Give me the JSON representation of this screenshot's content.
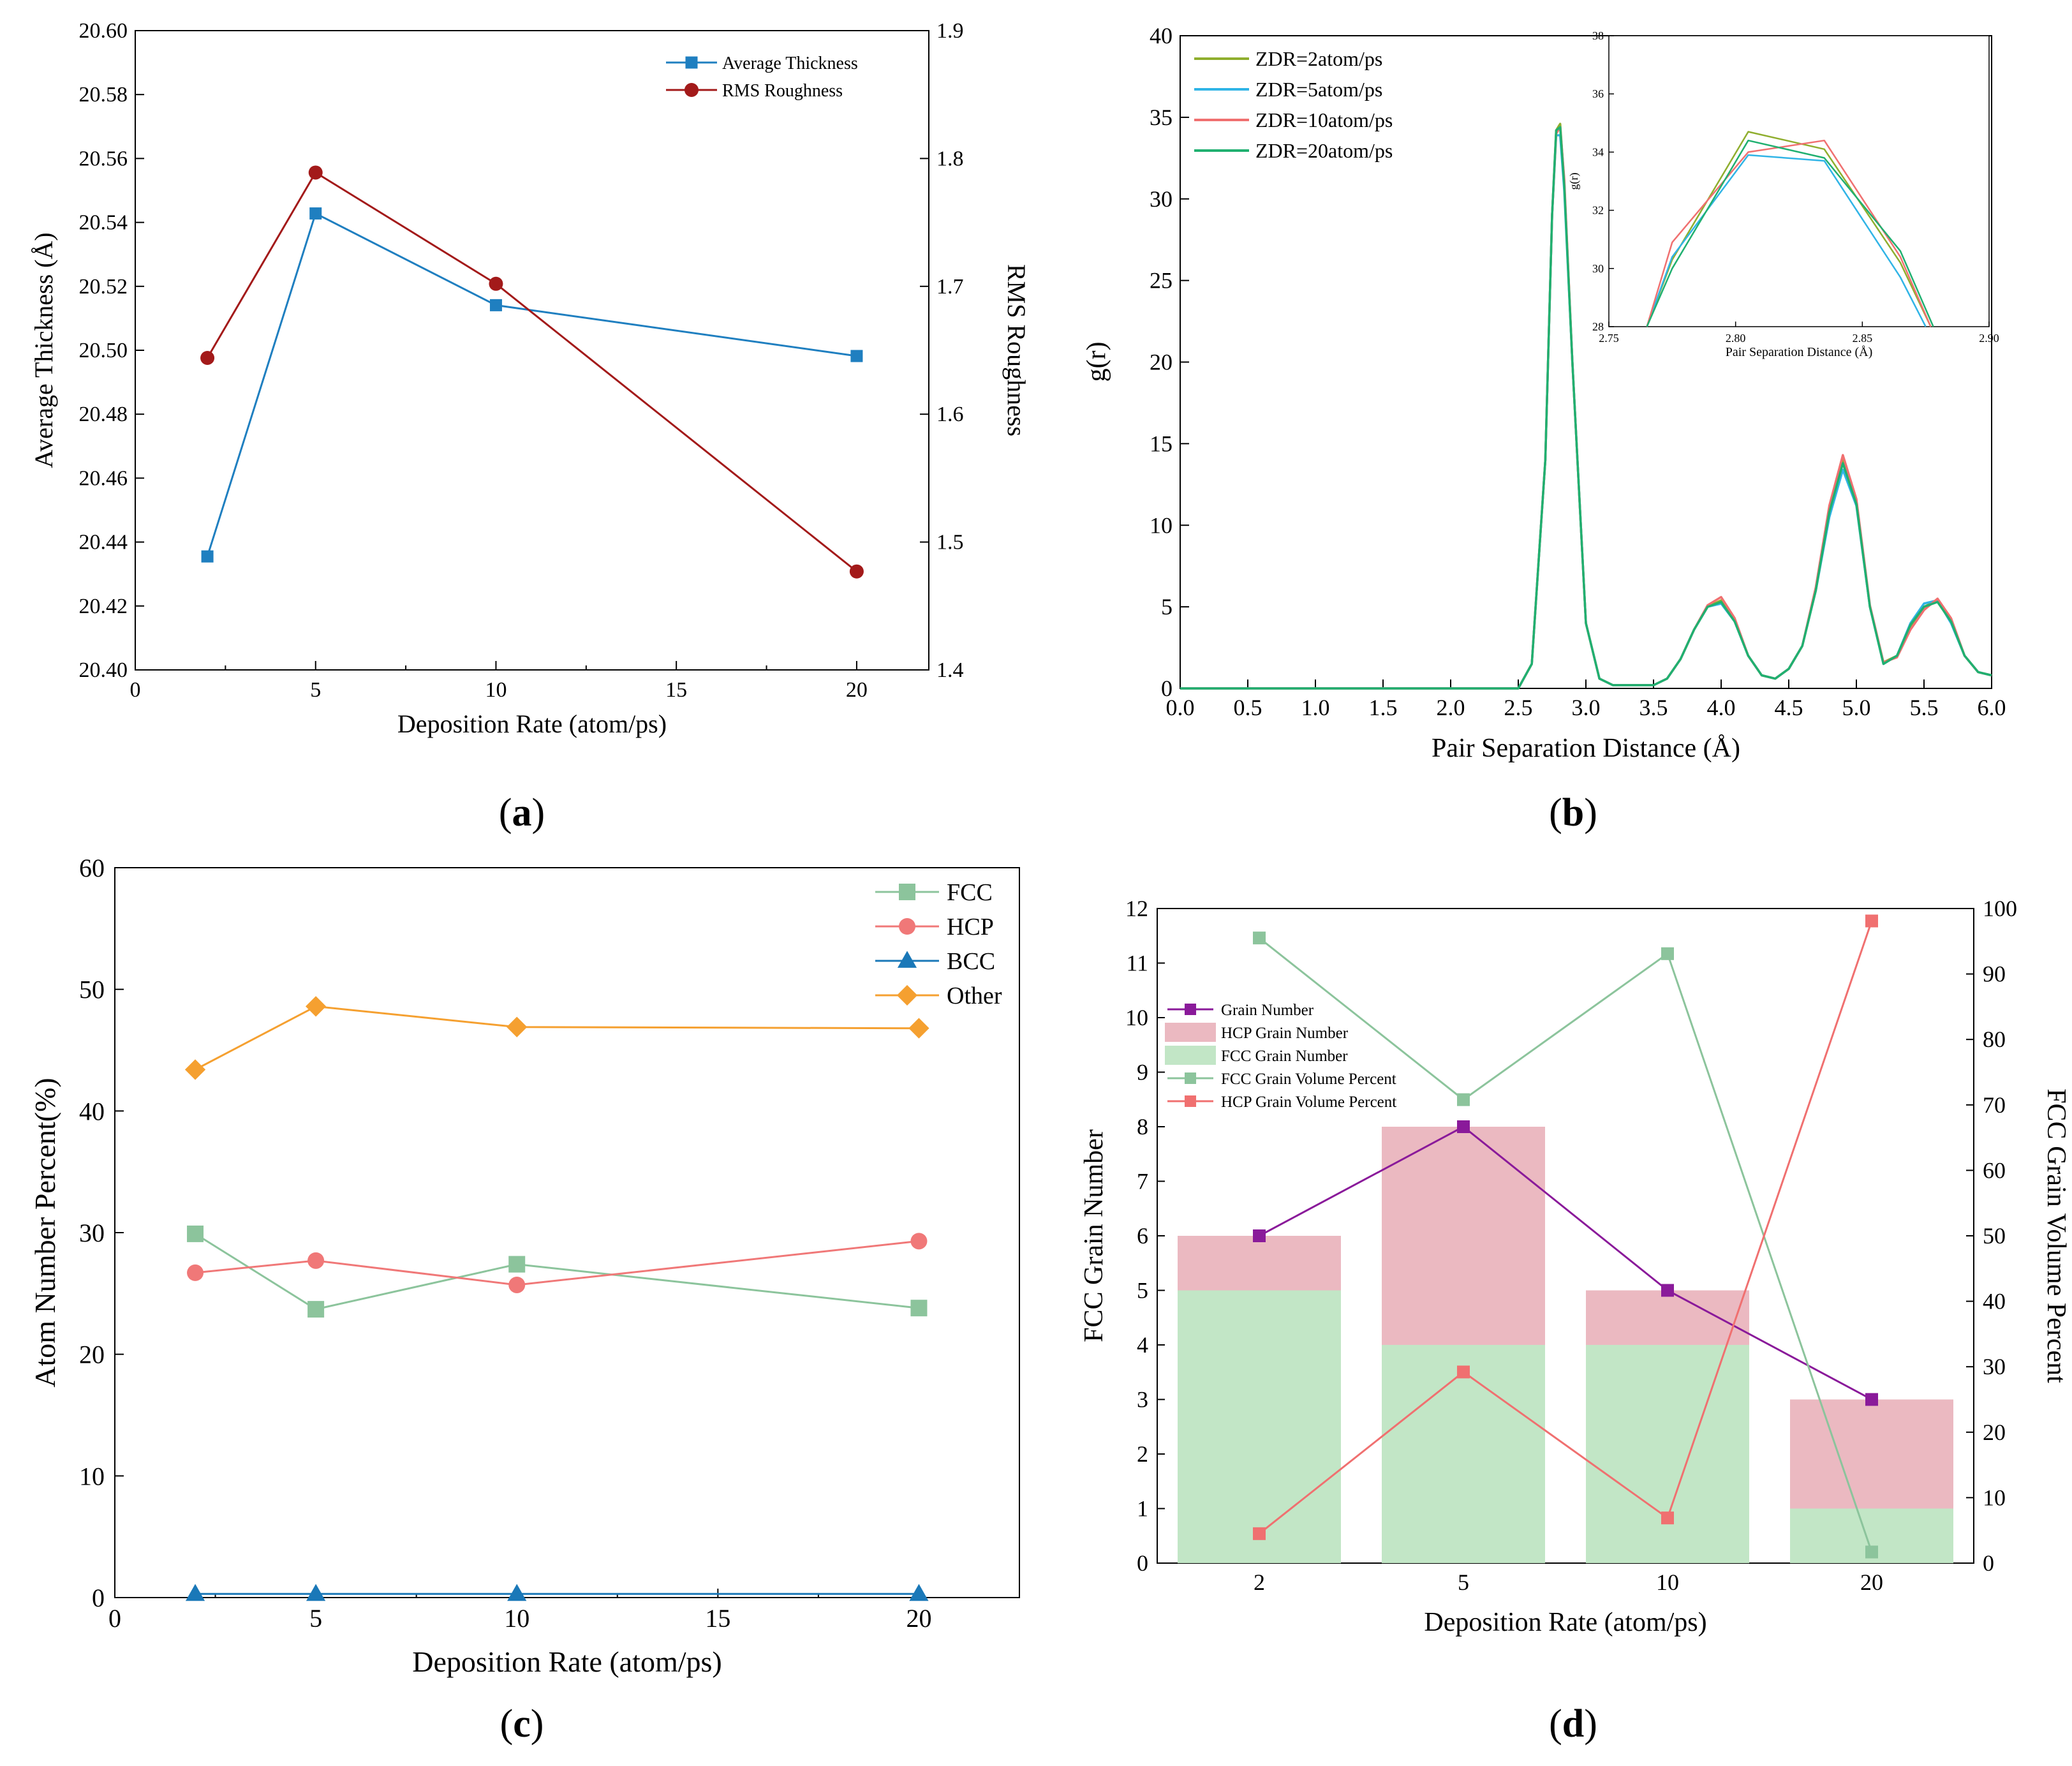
{
  "panels": [
    {
      "id": "a",
      "caption_letter": "a",
      "caption_open": "(",
      "caption_close": ")",
      "chart_data": {
        "type": "line",
        "title": "",
        "xlabel": "Deposition Rate (atom/ps)",
        "ylabel": "Average Thickness (Å)",
        "y2label": "RMS Roughness",
        "xlim": [
          0,
          22
        ],
        "ylim": [
          20.4,
          20.6
        ],
        "y2lim": [
          1.4,
          1.9
        ],
        "xticks": [
          "0",
          "5",
          "10",
          "15",
          "20"
        ],
        "xtick_values": [
          0,
          5,
          10,
          15,
          20
        ],
        "yticks": [
          "20.40",
          "20.42",
          "20.44",
          "20.46",
          "20.48",
          "20.50",
          "20.52",
          "20.54",
          "20.56",
          "20.58",
          "20.60"
        ],
        "y2ticks": [
          "1.4",
          "1.5",
          "1.6",
          "1.7",
          "1.8",
          "1.9"
        ],
        "legend_position": "top-right",
        "series": [
          {
            "name": "Average Thickness",
            "axis": "left",
            "marker": "square",
            "color": "#1f7fc0",
            "x": [
              2,
              5,
              10,
              20
            ],
            "y": [
              20.4355,
              20.5428,
              20.5141,
              20.4982
            ]
          },
          {
            "name": "RMS Roughness",
            "axis": "right",
            "marker": "circle",
            "color": "#a31a1a",
            "x": [
              2,
              5,
              10,
              20
            ],
            "y": [
              1.644,
              1.789,
              1.702,
              1.477
            ]
          }
        ]
      }
    },
    {
      "id": "b",
      "caption_letter": "b",
      "caption_open": "(",
      "caption_close": ")",
      "chart_data": {
        "type": "line",
        "title": "",
        "xlabel": "Pair Separation Distance (Å)",
        "ylabel": "g(r)",
        "xlim": [
          0,
          6
        ],
        "ylim": [
          0,
          40
        ],
        "xticks": [
          "0.0",
          "0.5",
          "1.0",
          "1.5",
          "2.0",
          "2.5",
          "3.0",
          "3.5",
          "4.0",
          "4.5",
          "5.0",
          "5.5",
          "6.0"
        ],
        "yticks": [
          "0",
          "5",
          "10",
          "15",
          "20",
          "25",
          "30",
          "35",
          "40"
        ],
        "legend_position": "top-left",
        "series": [
          {
            "name": "ZDR=2atom/ps",
            "color": "#8fae2e",
            "x": [
              0,
              2.5,
              2.6,
              2.7,
              2.75,
              2.78,
              2.81,
              2.84,
              2.9,
              3.0,
              3.1,
              3.2,
              3.5,
              3.6,
              3.7,
              3.8,
              3.9,
              4.0,
              4.1,
              4.2,
              4.3,
              4.4,
              4.5,
              4.6,
              4.7,
              4.8,
              4.9,
              5.0,
              5.1,
              5.2,
              5.3,
              5.4,
              5.5,
              5.6,
              5.7,
              5.8,
              5.9,
              6.0
            ],
            "y": [
              0,
              0,
              1.5,
              14,
              29,
              34.2,
              34.6,
              31,
              20,
              4,
              0.6,
              0.2,
              0.2,
              0.6,
              1.8,
              3.6,
              5.0,
              5.4,
              4.2,
              2.0,
              0.8,
              0.6,
              1.2,
              2.6,
              6.0,
              11.0,
              14.0,
              11.5,
              5.0,
              1.6,
              2.0,
              3.8,
              5.0,
              5.4,
              4.2,
              2.0,
              1.0,
              0.8
            ]
          },
          {
            "name": "ZDR=5atom/ps",
            "color": "#30b4e6",
            "x": [
              0,
              2.5,
              2.6,
              2.7,
              2.75,
              2.78,
              2.81,
              2.84,
              2.9,
              3.0,
              3.1,
              3.2,
              3.5,
              3.6,
              3.7,
              3.8,
              3.9,
              4.0,
              4.1,
              4.2,
              4.3,
              4.4,
              4.5,
              4.6,
              4.7,
              4.8,
              4.9,
              5.0,
              5.1,
              5.2,
              5.3,
              5.4,
              5.5,
              5.6,
              5.7,
              5.8,
              5.9,
              6.0
            ],
            "y": [
              0,
              0,
              1.5,
              14,
              29,
              33.9,
              33.9,
              30.5,
              20,
              4,
              0.6,
              0.2,
              0.2,
              0.6,
              1.8,
              3.6,
              5.0,
              5.2,
              4.1,
              2.0,
              0.8,
              0.6,
              1.2,
              2.6,
              6.0,
              10.5,
              13.4,
              11.2,
              5.0,
              1.5,
              2.0,
              4.0,
              5.2,
              5.4,
              4.0,
              2.0,
              1.0,
              0.8
            ]
          },
          {
            "name": "ZDR=10atom/ps",
            "color": "#f07070",
            "x": [
              0,
              2.5,
              2.6,
              2.7,
              2.75,
              2.78,
              2.81,
              2.84,
              2.9,
              3.0,
              3.1,
              3.2,
              3.5,
              3.6,
              3.7,
              3.8,
              3.9,
              4.0,
              4.1,
              4.2,
              4.3,
              4.4,
              4.5,
              4.6,
              4.7,
              4.8,
              4.9,
              5.0,
              5.1,
              5.2,
              5.3,
              5.4,
              5.5,
              5.6,
              5.7,
              5.8,
              5.9,
              6.0
            ],
            "y": [
              0,
              0,
              1.5,
              14,
              29,
              34.0,
              34.4,
              31.2,
              20,
              4,
              0.6,
              0.2,
              0.2,
              0.6,
              1.8,
              3.6,
              5.1,
              5.6,
              4.3,
              2.0,
              0.8,
              0.6,
              1.2,
              2.6,
              6.2,
              11.2,
              14.3,
              11.6,
              5.1,
              1.6,
              1.9,
              3.6,
              4.8,
              5.5,
              4.3,
              2.0,
              1.0,
              0.8
            ]
          },
          {
            "name": "ZDR=20atom/ps",
            "color": "#20b070",
            "x": [
              0,
              2.5,
              2.6,
              2.7,
              2.75,
              2.78,
              2.81,
              2.84,
              2.9,
              3.0,
              3.1,
              3.2,
              3.5,
              3.6,
              3.7,
              3.8,
              3.9,
              4.0,
              4.1,
              4.2,
              4.3,
              4.4,
              4.5,
              4.6,
              4.7,
              4.8,
              4.9,
              5.0,
              5.1,
              5.2,
              5.3,
              5.4,
              5.5,
              5.6,
              5.7,
              5.8,
              5.9,
              6.0
            ],
            "y": [
              0,
              0,
              1.5,
              14,
              29,
              34.2,
              34.4,
              30.8,
              20,
              4,
              0.6,
              0.2,
              0.2,
              0.6,
              1.8,
              3.6,
              5.0,
              5.3,
              4.1,
              2.0,
              0.8,
              0.6,
              1.2,
              2.6,
              6.0,
              10.8,
              13.8,
              11.3,
              5.0,
              1.5,
              2.0,
              3.9,
              5.0,
              5.3,
              4.1,
              2.0,
              1.0,
              0.8
            ]
          }
        ],
        "inset": {
          "xlabel": "Pair Separation Distance (Å)",
          "ylabel": "g(r)",
          "xlim": [
            2.75,
            2.9
          ],
          "ylim": [
            28,
            38
          ],
          "xticks": [
            "2.75",
            "2.80",
            "2.85",
            "2.90"
          ],
          "xtick_values": [
            2.75,
            2.8,
            2.85,
            2.9
          ],
          "yticks": [
            "28",
            "30",
            "32",
            "34",
            "36",
            "38"
          ],
          "ytick_values": [
            28,
            30,
            32,
            34,
            36,
            38
          ],
          "series": [
            {
              "color": "#8fae2e",
              "x": [
                2.765,
                2.775,
                2.805,
                2.835,
                2.865,
                2.877
              ],
              "y": [
                28,
                30.3,
                34.7,
                34.1,
                30.2,
                28
              ]
            },
            {
              "color": "#30b4e6",
              "x": [
                2.765,
                2.775,
                2.805,
                2.835,
                2.865,
                2.875
              ],
              "y": [
                28,
                30.4,
                33.9,
                33.7,
                29.7,
                28
              ]
            },
            {
              "color": "#f07070",
              "x": [
                2.765,
                2.775,
                2.805,
                2.835,
                2.865,
                2.877
              ],
              "y": [
                28,
                30.9,
                34.0,
                34.4,
                30.4,
                28
              ]
            },
            {
              "color": "#20b070",
              "x": [
                2.765,
                2.775,
                2.805,
                2.835,
                2.865,
                2.878
              ],
              "y": [
                28,
                30.0,
                34.4,
                33.8,
                30.6,
                28
              ]
            }
          ]
        }
      }
    },
    {
      "id": "c",
      "caption_letter": "c",
      "caption_open": "(",
      "caption_close": ")",
      "chart_data": {
        "type": "line",
        "title": "",
        "xlabel": "Deposition Rate (atom/ps)",
        "ylabel": "Atom Number Percent(%)",
        "xlim": [
          0,
          22.5
        ],
        "ylim": [
          0,
          60
        ],
        "xticks": [
          "0",
          "5",
          "10",
          "15",
          "20"
        ],
        "xtick_values": [
          0,
          5,
          10,
          15,
          20
        ],
        "yticks": [
          "0",
          "10",
          "20",
          "30",
          "40",
          "50",
          "60"
        ],
        "legend_position": "top-right",
        "series": [
          {
            "name": "FCC",
            "marker": "square",
            "color": "#8cc49c",
            "x": [
              2,
              5,
              10,
              20
            ],
            "y": [
              29.9,
              23.7,
              27.4,
              23.8
            ]
          },
          {
            "name": "HCP",
            "marker": "circle",
            "color": "#f07878",
            "x": [
              2,
              5,
              10,
              20
            ],
            "y": [
              26.7,
              27.7,
              25.7,
              29.3
            ]
          },
          {
            "name": "BCC",
            "marker": "triangle",
            "color": "#1a78b8",
            "x": [
              2,
              5,
              10,
              20
            ],
            "y": [
              0.3,
              0.3,
              0.3,
              0.3
            ]
          },
          {
            "name": "Other",
            "marker": "diamond",
            "color": "#f5a030",
            "x": [
              2,
              5,
              10,
              20
            ],
            "y": [
              43.4,
              48.6,
              46.9,
              46.8
            ]
          }
        ]
      }
    },
    {
      "id": "d",
      "caption_letter": "d",
      "caption_open": "(",
      "caption_close": ")",
      "chart_data": {
        "type": "bar",
        "title": "",
        "xlabel": "Deposition Rate (atom/ps)",
        "ylabel": "FCC Grain Number",
        "y2label": "FCC Grain Volume Percent",
        "categories": [
          "2",
          "5",
          "10",
          "20"
        ],
        "ylim": [
          0,
          12
        ],
        "y2lim": [
          0,
          100
        ],
        "yticks": [
          "0",
          "1",
          "2",
          "3",
          "4",
          "5",
          "6",
          "7",
          "8",
          "9",
          "10",
          "11",
          "12"
        ],
        "y2ticks": [
          "0",
          "10",
          "20",
          "30",
          "40",
          "50",
          "60",
          "70",
          "80",
          "90",
          "100"
        ],
        "legend_position": "top-left",
        "series": [
          {
            "name": "Grain Number",
            "kind": "line",
            "axis": "left",
            "marker": "square",
            "color": "#8a1a9a",
            "values": [
              6,
              8,
              5,
              3
            ]
          },
          {
            "name": "HCP Grain Number",
            "kind": "stacked-bar",
            "axis": "left",
            "color": "#ebb9c1",
            "values": [
              1,
              4,
              1,
              2
            ]
          },
          {
            "name": "FCC Grain Number",
            "kind": "stacked-bar",
            "axis": "left",
            "color": "#c2e6c6",
            "values": [
              5,
              4,
              4,
              1
            ]
          },
          {
            "name": "FCC Grain Volume Percent",
            "kind": "line",
            "axis": "right",
            "marker": "square",
            "color": "#8cc49c",
            "values": [
              95.5,
              70.8,
              93.1,
              1.7
            ]
          },
          {
            "name": "HCP Grain Volume Percent",
            "kind": "line",
            "axis": "right",
            "marker": "square",
            "color": "#f07070",
            "values": [
              4.5,
              29.2,
              6.9,
              98.1
            ]
          }
        ]
      }
    }
  ]
}
